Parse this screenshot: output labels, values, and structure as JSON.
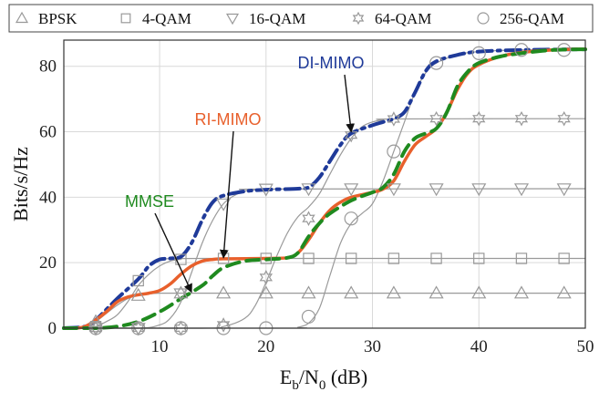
{
  "chart_data": {
    "type": "line",
    "xlim": [
      1,
      50
    ],
    "ylim": [
      0,
      88
    ],
    "x_ticks": [
      10,
      20,
      30,
      40,
      50
    ],
    "y_ticks": [
      0,
      20,
      40,
      60,
      80
    ],
    "grid": true,
    "legend_placement": "top, outside plot, single row",
    "ylabel": "Bits/s/Hz",
    "xlabel": "E_b/N_0 (dB)",
    "xlabel_parts": {
      "E": "E",
      "b": "b",
      "slash": "/N",
      "zero": "0",
      "unit": " (dB)"
    },
    "legend": [
      {
        "name": "BPSK",
        "marker": "triangle-up"
      },
      {
        "name": "4-QAM",
        "marker": "square"
      },
      {
        "name": "16-QAM",
        "marker": "triangle-down"
      },
      {
        "name": "64-QAM",
        "marker": "hexagram"
      },
      {
        "name": "256-QAM",
        "marker": "circle"
      }
    ],
    "modulation_series": [
      {
        "name": "BPSK",
        "marker": "triangle-up",
        "line": [
          [
            1,
            0
          ],
          [
            2,
            0
          ],
          [
            3,
            0.3
          ],
          [
            4,
            2
          ],
          [
            5,
            4.5
          ],
          [
            6,
            7
          ],
          [
            7,
            9
          ],
          [
            8,
            10
          ],
          [
            9,
            10.5
          ],
          [
            10,
            10.7
          ],
          [
            12,
            10.7
          ],
          [
            50,
            10.7
          ]
        ],
        "markers": [
          [
            4,
            2
          ],
          [
            8,
            10
          ],
          [
            12,
            10.7
          ],
          [
            16,
            10.7
          ],
          [
            20,
            10.7
          ],
          [
            24,
            10.7
          ],
          [
            28,
            10.7
          ],
          [
            32,
            10.7
          ],
          [
            36,
            10.7
          ],
          [
            40,
            10.7
          ],
          [
            44,
            10.7
          ],
          [
            48,
            10.7
          ]
        ]
      },
      {
        "name": "4-QAM",
        "marker": "square",
        "line": [
          [
            1,
            0
          ],
          [
            3,
            0
          ],
          [
            4,
            0.5
          ],
          [
            5,
            2
          ],
          [
            6,
            4
          ],
          [
            7,
            8
          ],
          [
            8,
            13
          ],
          [
            9,
            16.5
          ],
          [
            10,
            19
          ],
          [
            11,
            20.5
          ],
          [
            12,
            21
          ],
          [
            14,
            21.3
          ],
          [
            50,
            21.3
          ]
        ],
        "markers": [
          [
            4,
            0.5
          ],
          [
            8,
            14.5
          ],
          [
            12,
            21
          ],
          [
            16,
            21.3
          ],
          [
            20,
            21.3
          ],
          [
            24,
            21.3
          ],
          [
            28,
            21.3
          ],
          [
            32,
            21.3
          ],
          [
            36,
            21.3
          ],
          [
            40,
            21.3
          ],
          [
            44,
            21.3
          ],
          [
            48,
            21.3
          ]
        ]
      },
      {
        "name": "16-QAM",
        "marker": "triangle-down",
        "line": [
          [
            1,
            0
          ],
          [
            8,
            0
          ],
          [
            10,
            1
          ],
          [
            11,
            3
          ],
          [
            12,
            8
          ],
          [
            13,
            17
          ],
          [
            14,
            26
          ],
          [
            15,
            33
          ],
          [
            16,
            38
          ],
          [
            17,
            40.5
          ],
          [
            18,
            41.8
          ],
          [
            19,
            42.3
          ],
          [
            20,
            42.5
          ],
          [
            50,
            42.6
          ]
        ],
        "markers": [
          [
            4,
            0
          ],
          [
            8,
            0
          ],
          [
            12,
            10.5
          ],
          [
            16,
            38
          ],
          [
            20,
            42.5
          ],
          [
            24,
            42.6
          ],
          [
            28,
            42.6
          ],
          [
            32,
            42.6
          ],
          [
            36,
            42.6
          ],
          [
            40,
            42.6
          ],
          [
            44,
            42.6
          ],
          [
            48,
            42.6
          ]
        ]
      },
      {
        "name": "64-QAM",
        "marker": "hexagram",
        "line": [
          [
            1,
            0
          ],
          [
            14,
            0
          ],
          [
            16,
            0.5
          ],
          [
            18,
            3
          ],
          [
            19,
            7
          ],
          [
            20,
            14
          ],
          [
            21,
            22
          ],
          [
            22,
            29
          ],
          [
            23,
            34
          ],
          [
            24,
            37
          ],
          [
            25,
            41
          ],
          [
            26,
            47
          ],
          [
            27,
            53
          ],
          [
            28,
            58
          ],
          [
            29,
            61.5
          ],
          [
            30,
            63
          ],
          [
            31,
            63.6
          ],
          [
            32,
            63.9
          ],
          [
            50,
            64
          ]
        ],
        "markers": [
          [
            4,
            0
          ],
          [
            8,
            0
          ],
          [
            12,
            0
          ],
          [
            16,
            1
          ],
          [
            20,
            15.5
          ],
          [
            24,
            33.5
          ],
          [
            28,
            59
          ],
          [
            32,
            63.9
          ],
          [
            36,
            64
          ],
          [
            40,
            64
          ],
          [
            44,
            64
          ],
          [
            48,
            64
          ]
        ]
      },
      {
        "name": "256-QAM",
        "marker": "circle",
        "line": [
          [
            1,
            0
          ],
          [
            22,
            0
          ],
          [
            23,
            0.3
          ],
          [
            24,
            1.5
          ],
          [
            25,
            6
          ],
          [
            26,
            16
          ],
          [
            27,
            26
          ],
          [
            28,
            32
          ],
          [
            29,
            35
          ],
          [
            30,
            38
          ],
          [
            31,
            45
          ],
          [
            32,
            54
          ],
          [
            33,
            63
          ],
          [
            34,
            72
          ],
          [
            35,
            78
          ],
          [
            36,
            81
          ],
          [
            38,
            83.5
          ],
          [
            40,
            84.5
          ],
          [
            44,
            85
          ],
          [
            50,
            85.2
          ]
        ],
        "markers": [
          [
            4,
            0
          ],
          [
            8,
            0
          ],
          [
            12,
            0
          ],
          [
            16,
            0
          ],
          [
            20,
            0
          ],
          [
            24,
            3.5
          ],
          [
            28,
            33.5
          ],
          [
            32,
            54
          ],
          [
            36,
            81
          ],
          [
            40,
            84
          ],
          [
            44,
            85
          ],
          [
            48,
            85
          ]
        ]
      }
    ],
    "detector_series": [
      {
        "name": "DI-MIMO",
        "color": "#1f3a99",
        "style": "dashdot",
        "width": 4,
        "points": [
          [
            1,
            0
          ],
          [
            3,
            0.5
          ],
          [
            4,
            2.5
          ],
          [
            6,
            9
          ],
          [
            8,
            15
          ],
          [
            9,
            19
          ],
          [
            10,
            21
          ],
          [
            11,
            21.3
          ],
          [
            12,
            21.8
          ],
          [
            13,
            26
          ],
          [
            14,
            33
          ],
          [
            15,
            38.5
          ],
          [
            16,
            40.5
          ],
          [
            18,
            41.8
          ],
          [
            20,
            42.3
          ],
          [
            23,
            42.6
          ],
          [
            24,
            43
          ],
          [
            25,
            46
          ],
          [
            26,
            51
          ],
          [
            27,
            56
          ],
          [
            28,
            59.5
          ],
          [
            30,
            62
          ],
          [
            31,
            63
          ],
          [
            32,
            64
          ],
          [
            33,
            66
          ],
          [
            34,
            72
          ],
          [
            35,
            78.5
          ],
          [
            36,
            81.5
          ],
          [
            38,
            83.5
          ],
          [
            40,
            84.5
          ],
          [
            44,
            85
          ],
          [
            50,
            85.2
          ]
        ]
      },
      {
        "name": "RI-MIMO",
        "color": "#e8602c",
        "style": "solid",
        "width": 3.5,
        "points": [
          [
            1,
            0
          ],
          [
            2,
            0
          ],
          [
            3,
            0.5
          ],
          [
            4,
            2.5
          ],
          [
            5,
            5
          ],
          [
            6,
            8
          ],
          [
            7,
            9.5
          ],
          [
            8,
            10.2
          ],
          [
            9,
            10.7
          ],
          [
            10,
            11.5
          ],
          [
            11,
            13.5
          ],
          [
            12,
            16.5
          ],
          [
            13,
            19
          ],
          [
            14,
            20.5
          ],
          [
            15,
            21
          ],
          [
            16,
            21.2
          ],
          [
            20,
            21.3
          ],
          [
            22,
            21.5
          ],
          [
            23,
            23
          ],
          [
            24,
            27
          ],
          [
            25,
            32
          ],
          [
            26,
            36
          ],
          [
            27,
            38.5
          ],
          [
            28,
            40
          ],
          [
            30,
            41.5
          ],
          [
            31,
            42.5
          ],
          [
            32,
            45
          ],
          [
            33,
            51
          ],
          [
            34,
            56
          ],
          [
            35,
            58.5
          ],
          [
            36,
            61
          ],
          [
            37,
            66
          ],
          [
            38,
            73
          ],
          [
            39,
            78
          ],
          [
            40,
            80.5
          ],
          [
            42,
            83
          ],
          [
            44,
            84.2
          ],
          [
            47,
            85
          ],
          [
            50,
            85.3
          ]
        ]
      },
      {
        "name": "MMSE",
        "color": "#1f8a1f",
        "style": "dash",
        "width": 4,
        "points": [
          [
            1,
            0
          ],
          [
            3,
            0
          ],
          [
            4,
            0
          ],
          [
            6,
            0.5
          ],
          [
            8,
            2
          ],
          [
            10,
            5
          ],
          [
            12,
            9
          ],
          [
            14,
            13
          ],
          [
            15,
            16
          ],
          [
            16,
            18.5
          ],
          [
            18,
            20.5
          ],
          [
            20,
            21
          ],
          [
            22,
            21.5
          ],
          [
            23,
            23
          ],
          [
            24,
            28
          ],
          [
            25,
            32
          ],
          [
            26,
            35
          ],
          [
            28,
            39
          ],
          [
            30,
            41.5
          ],
          [
            31,
            43
          ],
          [
            32,
            47
          ],
          [
            33,
            54
          ],
          [
            34,
            58
          ],
          [
            35,
            59.5
          ],
          [
            36,
            61
          ],
          [
            37,
            66
          ],
          [
            38,
            74
          ],
          [
            39,
            78.5
          ],
          [
            40,
            81
          ],
          [
            42,
            83
          ],
          [
            44,
            84
          ],
          [
            47,
            85
          ],
          [
            50,
            85.2
          ]
        ]
      }
    ],
    "annotations": [
      {
        "text": "DI-MIMO",
        "color": "#1f3a99",
        "arrow_to": [
          28,
          60
        ]
      },
      {
        "text": "RI-MIMO",
        "color": "#e8602c",
        "arrow_to": [
          16,
          21.5
        ]
      },
      {
        "text": "MMSE",
        "color": "#1f8a1f",
        "arrow_to": [
          13,
          11
        ]
      }
    ]
  }
}
